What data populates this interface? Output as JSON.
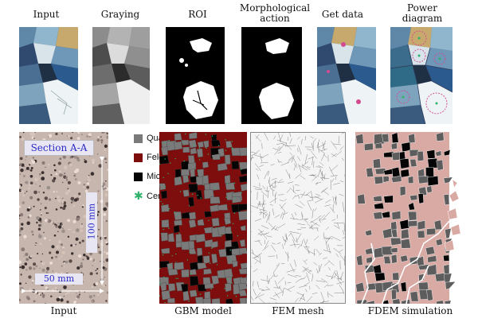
{
  "top_labels": {
    "input": "Input",
    "graying": "Graying",
    "roi": "ROI",
    "morph_line1": "Morphological",
    "morph_line2": "action",
    "get_data": "Get data",
    "power_line1": "Power",
    "power_line2": "diagram"
  },
  "bottom_labels": {
    "input": "Input",
    "gbm": "GBM model",
    "fem": "FEM mesh",
    "fdem": "FDEM simulation"
  },
  "section": {
    "title": "Section A-A",
    "height_label": "100 mm",
    "width_label": "50 mm"
  },
  "legend": [
    {
      "label": "Quartz",
      "color": "#7a7a7a",
      "kind": "square"
    },
    {
      "label": "Feldspar",
      "color": "#7e0d0d",
      "kind": "square"
    },
    {
      "label": "Mica",
      "color": "#050505",
      "kind": "square"
    },
    {
      "label": "Centroid",
      "color": "#2fb36b",
      "kind": "star"
    }
  ],
  "colors": {
    "quartz": "#7a7a7a",
    "feldspar": "#7e0d0d",
    "mica": "#050505",
    "centroid": "#2fb36b",
    "fdem_pink": "#d9a9a4",
    "fdem_gray": "#5d5d5d"
  }
}
